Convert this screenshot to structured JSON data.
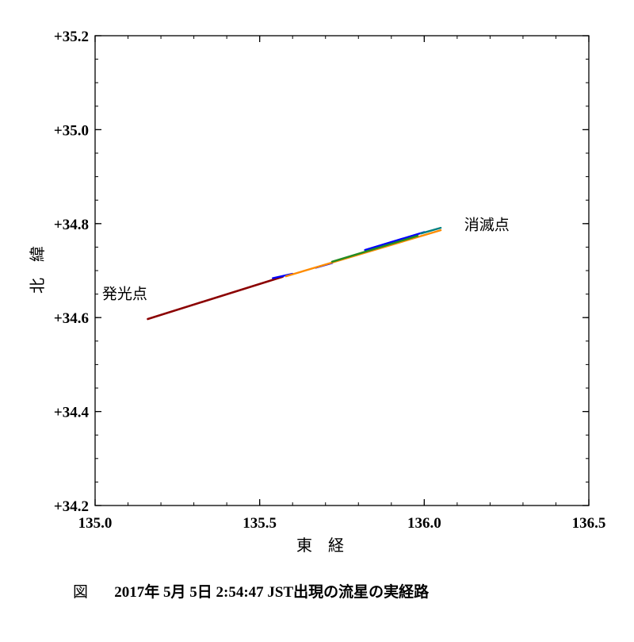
{
  "chart_data": {
    "type": "line",
    "xlabel": "東　経",
    "ylabel": "北　緯",
    "xlim": [
      135.0,
      136.5
    ],
    "ylim": [
      34.2,
      35.2
    ],
    "x_ticks": [
      {
        "value": 135.0,
        "label": "135.0"
      },
      {
        "value": 135.5,
        "label": "135.5"
      },
      {
        "value": 136.0,
        "label": "136.0"
      },
      {
        "value": 136.5,
        "label": "136.5"
      }
    ],
    "y_ticks": [
      {
        "value": 34.2,
        "label": "+34.2"
      },
      {
        "value": 34.4,
        "label": "+34.4"
      },
      {
        "value": 34.6,
        "label": "+34.6"
      },
      {
        "value": 34.8,
        "label": "+34.8"
      },
      {
        "value": 35.0,
        "label": "+35.0"
      },
      {
        "value": 35.2,
        "label": "+35.2"
      }
    ],
    "x_minor_step": 0.1,
    "y_minor_step": 0.05,
    "grid": false,
    "series": [
      {
        "color": "#8b0000",
        "x": [
          135.16,
          135.57
        ],
        "y": [
          34.597,
          34.687
        ]
      },
      {
        "color": "#0000ff",
        "x": [
          135.54,
          135.6
        ],
        "y": [
          34.684,
          34.693
        ]
      },
      {
        "color": "#0000ff",
        "x": [
          135.67,
          135.72
        ],
        "y": [
          34.706,
          34.716
        ]
      },
      {
        "color": "#0000ff",
        "x": [
          135.82,
          136.0
        ],
        "y": [
          34.744,
          34.782
        ]
      },
      {
        "color": "#ff8c00",
        "x": [
          135.58,
          136.05
        ],
        "y": [
          34.688,
          34.786
        ]
      },
      {
        "color": "#228b22",
        "x": [
          135.72,
          135.98
        ],
        "y": [
          34.719,
          34.774
        ]
      },
      {
        "color": "#008080",
        "x": [
          135.99,
          136.05
        ],
        "y": [
          34.779,
          34.791
        ]
      }
    ],
    "annotations": [
      {
        "text": "発光点",
        "x": 135.09,
        "y": 34.64
      },
      {
        "text": "消滅点",
        "x": 136.19,
        "y": 34.787
      }
    ]
  },
  "caption": {
    "figure_label": "図",
    "text": "2017年 5月 5日 2:54:47 JST出現の流星の実経路"
  }
}
